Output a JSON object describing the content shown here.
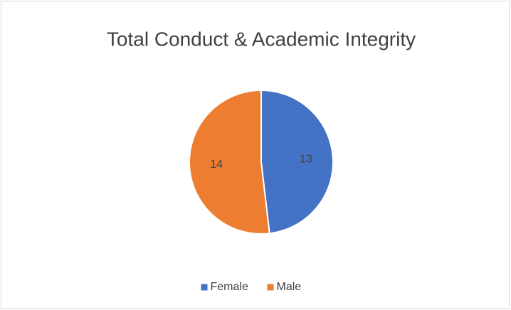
{
  "chart_data": {
    "type": "pie",
    "title": "Total Conduct & Academic Integrity",
    "categories": [
      "Female",
      "Male"
    ],
    "values": [
      13,
      14
    ],
    "colors": [
      "#4472c4",
      "#ed7d31"
    ],
    "legend": "bottom"
  }
}
